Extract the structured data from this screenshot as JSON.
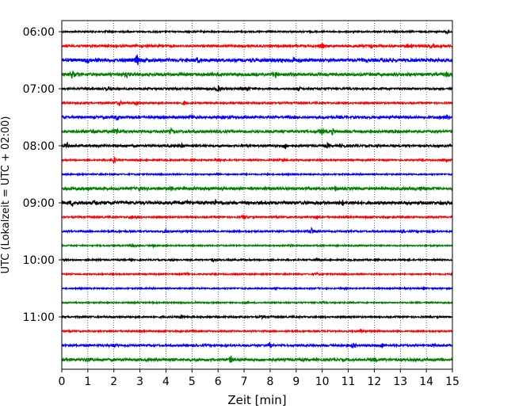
{
  "chart_data": {
    "type": "line",
    "title": "",
    "xlabel": "Zeit  [min]",
    "ylabel": "UTC (Lokalzeit = UTC + 02:00)",
    "xlim": [
      0,
      15
    ],
    "x_ticks": [
      0,
      1,
      2,
      3,
      4,
      5,
      6,
      7,
      8,
      9,
      10,
      11,
      12,
      13,
      14,
      15
    ],
    "grid": "vertical-dotted",
    "trace_interval_min": 15,
    "trace_colors": [
      "#000000",
      "#ff0000",
      "#0000ff",
      "#008000"
    ],
    "y_tick_labels": [
      {
        "label": "06:00",
        "trace": 0
      },
      {
        "label": "07:00",
        "trace": 4
      },
      {
        "label": "08:00",
        "trace": 8
      },
      {
        "label": "09:00",
        "trace": 12
      },
      {
        "label": "10:00",
        "trace": 16
      },
      {
        "label": "11:00",
        "trace": 20
      }
    ],
    "traces": [
      {
        "start": "06:00",
        "amp": 0.9,
        "events": [
          [
            1.8,
            1.2
          ],
          [
            14.8,
            2.5
          ]
        ]
      },
      {
        "start": "06:15",
        "amp": 1.3,
        "events": [
          [
            10.0,
            2.5
          ],
          [
            11.9,
            2.2
          ],
          [
            13.3,
            2.5
          ],
          [
            14.2,
            2.0
          ]
        ]
      },
      {
        "start": "06:30",
        "amp": 2.0,
        "events": [
          [
            1.0,
            2.5
          ],
          [
            2.9,
            6.5
          ],
          [
            5.2,
            2.5
          ],
          [
            8.9,
            3.0
          ],
          [
            12.5,
            2.0
          ]
        ]
      },
      {
        "start": "06:45",
        "amp": 1.8,
        "events": [
          [
            0.4,
            4.5
          ],
          [
            2.5,
            3.0
          ],
          [
            8.2,
            4.0
          ],
          [
            14.8,
            3.5
          ]
        ]
      },
      {
        "start": "07:00",
        "amp": 1.2,
        "events": [
          [
            1.8,
            2.5
          ],
          [
            6.0,
            4.0
          ],
          [
            7.1,
            3.5
          ],
          [
            9.1,
            2.5
          ]
        ]
      },
      {
        "start": "07:15",
        "amp": 1.0,
        "events": [
          [
            2.2,
            3.5
          ],
          [
            2.9,
            2.5
          ],
          [
            4.7,
            2.5
          ],
          [
            8.0,
            2.0
          ]
        ]
      },
      {
        "start": "07:30",
        "amp": 1.5,
        "events": [
          [
            2.1,
            2.5
          ],
          [
            5.0,
            2.0
          ],
          [
            14.8,
            2.5
          ]
        ]
      },
      {
        "start": "07:45",
        "amp": 1.6,
        "events": [
          [
            1.2,
            3.0
          ],
          [
            2.1,
            4.0
          ],
          [
            4.2,
            2.5
          ],
          [
            10.0,
            4.0
          ],
          [
            10.4,
            3.0
          ]
        ]
      },
      {
        "start": "08:00",
        "amp": 1.3,
        "events": [
          [
            0.2,
            3.5
          ],
          [
            4.6,
            2.5
          ],
          [
            8.6,
            4.0
          ],
          [
            10.2,
            2.5
          ],
          [
            10.8,
            2.5
          ]
        ]
      },
      {
        "start": "08:15",
        "amp": 0.9,
        "events": [
          [
            2.0,
            4.5
          ],
          [
            6.0,
            2.0
          ],
          [
            8.5,
            1.8
          ],
          [
            14.8,
            1.5
          ]
        ]
      },
      {
        "start": "08:30",
        "amp": 0.8,
        "events": [
          [
            6.0,
            1.5
          ]
        ]
      },
      {
        "start": "08:45",
        "amp": 1.6,
        "events": [
          [
            1.0,
            2.5
          ],
          [
            3.0,
            2.0
          ],
          [
            4.2,
            3.0
          ],
          [
            10.5,
            2.5
          ],
          [
            13.8,
            2.0
          ]
        ]
      },
      {
        "start": "09:00",
        "amp": 1.8,
        "events": [
          [
            0.4,
            3.5
          ],
          [
            1.3,
            3.0
          ],
          [
            4.8,
            2.5
          ],
          [
            5.9,
            2.5
          ],
          [
            10.8,
            2.5
          ]
        ]
      },
      {
        "start": "09:15",
        "amp": 1.0,
        "events": [
          [
            2.7,
            2.5
          ],
          [
            7.0,
            2.5
          ],
          [
            9.8,
            2.0
          ]
        ]
      },
      {
        "start": "09:30",
        "amp": 1.0,
        "events": [
          [
            4.0,
            2.0
          ],
          [
            9.6,
            5.0
          ],
          [
            13.1,
            1.5
          ]
        ]
      },
      {
        "start": "09:45",
        "amp": 0.8,
        "events": [
          [
            2.7,
            2.5
          ],
          [
            3.5,
            1.5
          ],
          [
            8.8,
            1.5
          ]
        ]
      },
      {
        "start": "10:00",
        "amp": 0.9,
        "events": [
          [
            5.8,
            2.0
          ],
          [
            9.8,
            1.5
          ]
        ]
      },
      {
        "start": "10:15",
        "amp": 0.8,
        "events": [
          [
            4.8,
            1.5
          ],
          [
            9.8,
            1.5
          ]
        ]
      },
      {
        "start": "10:30",
        "amp": 0.8,
        "events": [
          [
            8.2,
            1.5
          ],
          [
            13.9,
            1.8
          ]
        ]
      },
      {
        "start": "10:45",
        "amp": 0.8,
        "events": [
          [
            10.0,
            1.2
          ]
        ]
      },
      {
        "start": "11:00",
        "amp": 1.0,
        "events": [
          [
            4.6,
            3.0
          ],
          [
            7.7,
            1.5
          ]
        ]
      },
      {
        "start": "11:15",
        "amp": 0.9,
        "events": [
          [
            11.5,
            2.5
          ]
        ]
      },
      {
        "start": "11:30",
        "amp": 1.2,
        "events": [
          [
            2.0,
            2.0
          ],
          [
            8.0,
            4.0
          ],
          [
            11.2,
            3.5
          ],
          [
            12.3,
            3.0
          ],
          [
            14.3,
            2.0
          ]
        ]
      },
      {
        "start": "11:45",
        "amp": 1.6,
        "events": [
          [
            6.5,
            3.5
          ],
          [
            1.0,
            2.0
          ],
          [
            12.0,
            2.0
          ]
        ]
      }
    ]
  }
}
